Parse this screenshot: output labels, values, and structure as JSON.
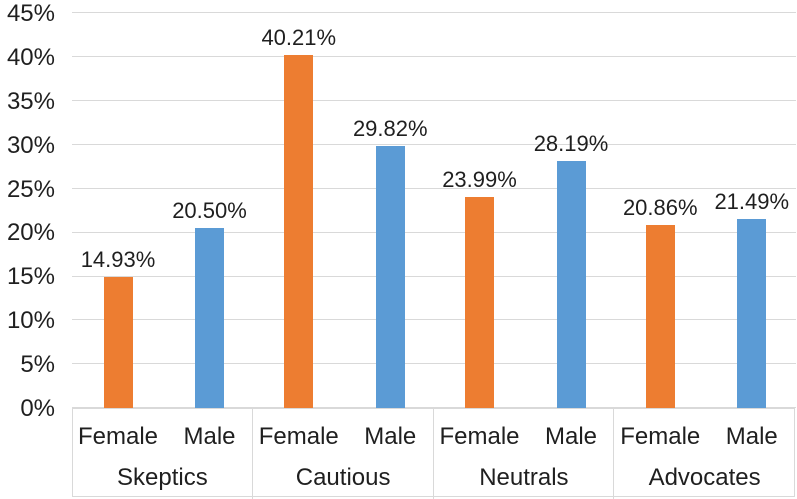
{
  "chart_data": {
    "type": "bar",
    "title": "",
    "xlabel": "",
    "ylabel": "",
    "categories": [
      "Skeptics",
      "Cautious",
      "Neutrals",
      "Advocates"
    ],
    "series_labels_per_group": [
      "Female",
      "Male"
    ],
    "series": [
      {
        "name": "Female",
        "color": "#ED7D31",
        "values": [
          14.93,
          40.21,
          23.99,
          20.86
        ]
      },
      {
        "name": "Male",
        "color": "#5B9BD5",
        "values": [
          20.5,
          29.82,
          28.19,
          21.49
        ]
      }
    ],
    "value_labels": [
      [
        "14.93%",
        "20.50%"
      ],
      [
        "40.21%",
        "29.82%"
      ],
      [
        "23.99%",
        "28.19%"
      ],
      [
        "20.86%",
        "21.49%"
      ]
    ],
    "y_axis": {
      "min": 0,
      "max": 45,
      "step": 5,
      "tick_labels": [
        "0%",
        "5%",
        "10%",
        "15%",
        "20%",
        "25%",
        "30%",
        "35%",
        "40%",
        "45%"
      ]
    },
    "grid": true,
    "legend": false,
    "colors": {
      "female_bar": "#ED7D31",
      "male_bar": "#5B9BD5",
      "gridline": "#D9D9D9",
      "category_border": "#D9D9D9",
      "text": "#1F1F1F",
      "background": "#FFFFFF"
    }
  }
}
